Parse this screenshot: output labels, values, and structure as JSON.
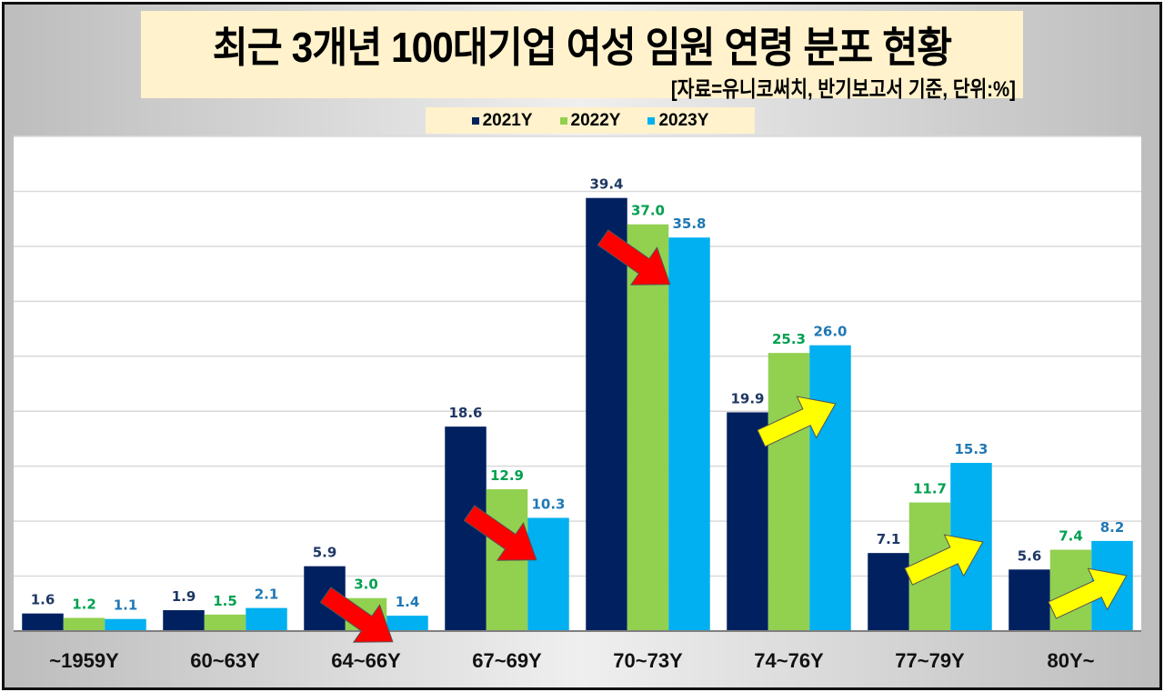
{
  "chart_data": {
    "type": "bar",
    "title": "최근 3개년 100대기업 여성 임원 연령 분포 현황",
    "subtitle": "[자료=유니코써치, 반기보고서 기준, 단위:%]",
    "categories": [
      "~1959Y",
      "60~63Y",
      "64~66Y",
      "67~69Y",
      "70~73Y",
      "74~76Y",
      "77~79Y",
      "80Y~"
    ],
    "series": [
      {
        "name": "2021Y",
        "color": "#002060",
        "label_color": "#1f3864",
        "values": [
          1.6,
          1.9,
          5.9,
          18.6,
          39.4,
          19.9,
          7.1,
          5.6
        ]
      },
      {
        "name": "2022Y",
        "color": "#92d050",
        "label_color": "#00a050",
        "values": [
          1.2,
          1.5,
          3.0,
          12.9,
          37.0,
          25.3,
          11.7,
          7.4
        ]
      },
      {
        "name": "2023Y",
        "color": "#00b0f0",
        "label_color": "#1f78b4",
        "values": [
          1.1,
          2.1,
          1.4,
          10.3,
          35.8,
          26.0,
          15.3,
          8.2
        ]
      }
    ],
    "ylim": [
      0,
      45
    ],
    "grid": true,
    "legend_position": "top",
    "annotations": {
      "red_down_arrows": [
        "64~66Y",
        "67~69Y",
        "70~73Y"
      ],
      "yellow_up_arrows": [
        "74~76Y",
        "77~79Y",
        "80Y~"
      ],
      "red": "#ff0000",
      "yellow": "#ffff00"
    }
  }
}
